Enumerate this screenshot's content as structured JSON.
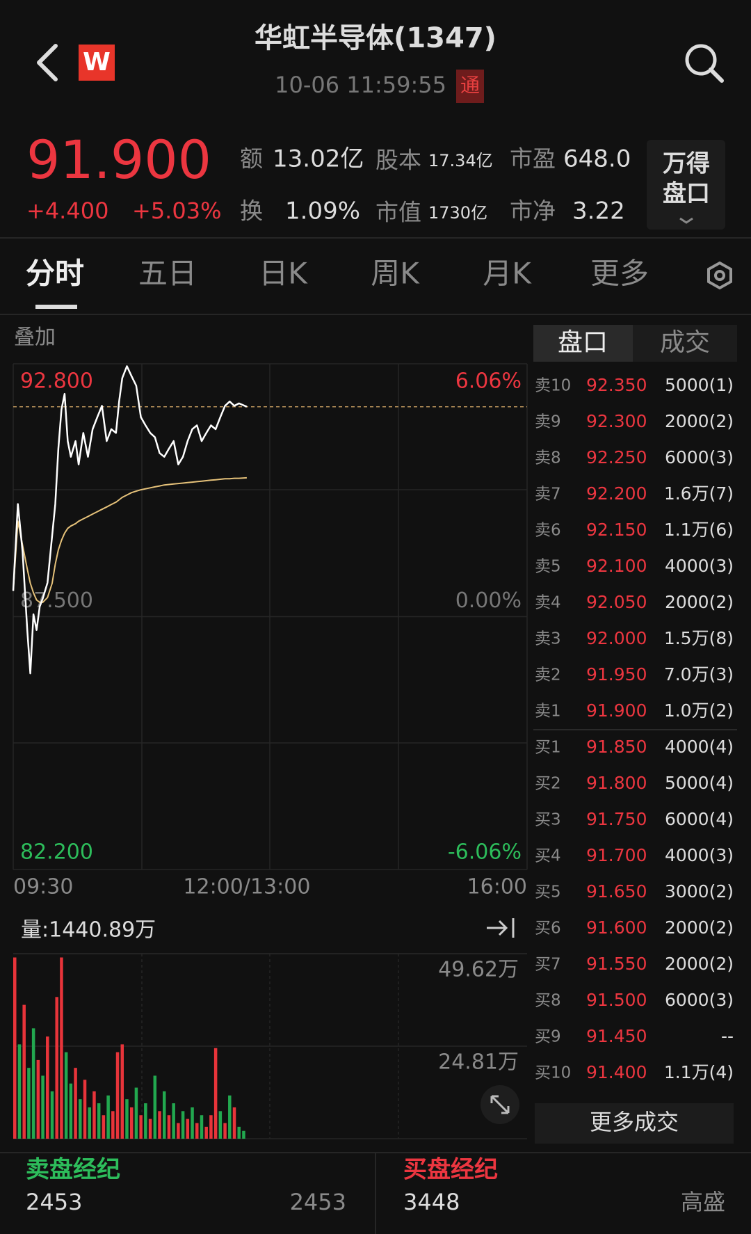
{
  "header": {
    "logo": "W",
    "title": "华虹半导体(1347)",
    "timestamp": "10-06 11:59:55",
    "badge": "通"
  },
  "quote": {
    "price": "91.900",
    "change": "+4.400",
    "change_pct": "+5.03%",
    "stats": [
      [
        "额",
        "13.02亿"
      ],
      [
        "股本",
        "17.34亿"
      ],
      [
        "市盈",
        "648.0"
      ],
      [
        "换",
        "1.09%"
      ],
      [
        "市值",
        "1730亿"
      ],
      [
        "市净",
        "3.22"
      ]
    ],
    "button": [
      "万得",
      "盘口"
    ]
  },
  "tabs": [
    "分时",
    "五日",
    "日K",
    "周K",
    "月K",
    "更多"
  ],
  "overlay_label": "叠加",
  "chart_data": [
    {
      "type": "line",
      "x": [
        0,
        3,
        6,
        9,
        11,
        13,
        15,
        17,
        19,
        22,
        25,
        27,
        29,
        31,
        33,
        35,
        37,
        40,
        42,
        45,
        48,
        51,
        54,
        57,
        60,
        63,
        66,
        68,
        70,
        73,
        76,
        79,
        82,
        85,
        88,
        91,
        94,
        97,
        100,
        103,
        106,
        109,
        112,
        115,
        118,
        121,
        124,
        127,
        130,
        133,
        136,
        139,
        142,
        145,
        150
      ],
      "series": [
        {
          "color": "#ffffff",
          "values": [
            88.04,
            89.86,
            88.87,
            87.22,
            86.31,
            87.55,
            87.22,
            87.71,
            87.88,
            88.21,
            89.2,
            89.86,
            91.02,
            91.84,
            92.17,
            91.18,
            90.85,
            91.18,
            90.69,
            91.35,
            90.85,
            91.43,
            91.68,
            91.92,
            91.18,
            91.43,
            91.35,
            92.01,
            92.5,
            92.75,
            92.54,
            92.34,
            91.68,
            91.51,
            91.35,
            91.26,
            90.93,
            90.85,
            91.02,
            91.18,
            90.69,
            90.85,
            91.18,
            91.43,
            91.51,
            91.18,
            91.35,
            91.51,
            91.43,
            91.68,
            91.92,
            92.01,
            91.92,
            91.97,
            91.9
          ]
        },
        {
          "color": "#e6c27a",
          "values": [
            88.04,
            89.5,
            89.0,
            88.5,
            88.2,
            88.0,
            87.85,
            87.8,
            87.8,
            87.9,
            88.2,
            88.6,
            88.9,
            89.1,
            89.25,
            89.35,
            89.4,
            89.45,
            89.5,
            89.55,
            89.6,
            89.65,
            89.7,
            89.75,
            89.8,
            89.85,
            89.9,
            89.95,
            90.0,
            90.05,
            90.1,
            90.13,
            90.16,
            90.18,
            90.2,
            90.22,
            90.24,
            90.26,
            90.27,
            90.28,
            90.29,
            90.3,
            90.31,
            90.32,
            90.33,
            90.34,
            90.35,
            90.36,
            90.37,
            90.38,
            90.39,
            90.39,
            90.4,
            90.4,
            90.41
          ]
        }
      ],
      "last_price": 91.9,
      "xlim": [
        0,
        330
      ],
      "xticks": [
        {
          "value": 0,
          "label": "09:30"
        },
        {
          "value": 150,
          "label": "12:00/13:00"
        },
        {
          "value": 330,
          "label": "16:00"
        }
      ],
      "ylim": [
        82.2,
        92.8
      ],
      "yticks": [
        {
          "value": 92.8,
          "label": "92.800"
        },
        {
          "value": 87.5,
          "label": "87.500"
        },
        {
          "value": 82.2,
          "label": "82.200"
        }
      ],
      "y2lim": [
        -6.06,
        6.06
      ],
      "y2ticks": [
        {
          "value": 6.06,
          "label": "6.06%"
        },
        {
          "value": 0,
          "label": "0.00%"
        },
        {
          "value": -6.06,
          "label": "-6.06%"
        }
      ],
      "grid": true
    },
    {
      "type": "bar",
      "title": "量:1440.89万",
      "x": [
        0,
        3,
        6,
        9,
        12,
        15,
        18,
        21,
        24,
        27,
        30,
        33,
        36,
        39,
        42,
        45,
        48,
        51,
        54,
        57,
        60,
        63,
        66,
        69,
        72,
        75,
        78,
        81,
        84,
        87,
        90,
        93,
        96,
        99,
        102,
        105,
        108,
        111,
        114,
        117,
        120,
        123,
        126,
        129,
        132,
        135,
        138,
        141,
        144,
        147
      ],
      "values": [
        48.6,
        25.3,
        35.9,
        19,
        29.6,
        21.1,
        16.9,
        27.4,
        12.7,
        38,
        48.6,
        23.2,
        14.8,
        19,
        10.6,
        15.8,
        8.4,
        12.7,
        9.5,
        6.3,
        11.6,
        7.4,
        23.2,
        25.3,
        10.6,
        8.4,
        13.7,
        6.3,
        9.5,
        5.3,
        16.9,
        7.4,
        12.7,
        6.3,
        9.5,
        4.2,
        7.4,
        5.3,
        8.4,
        4.2,
        6.3,
        3.2,
        6.3,
        24.3,
        7.4,
        4.2,
        11.6,
        8.4,
        3.2,
        2.1
      ],
      "colors": [
        "#e8343a",
        "#22a84f",
        "#e8343a",
        "#22a84f",
        "#22a84f",
        "#e8343a",
        "#22a84f",
        "#e8343a",
        "#22a84f",
        "#e8343a",
        "#e8343a",
        "#22a84f",
        "#22a84f",
        "#e8343a",
        "#22a84f",
        "#e8343a",
        "#22a84f",
        "#e8343a",
        "#22a84f",
        "#e8343a",
        "#22a84f",
        "#e8343a",
        "#e8343a",
        "#e8343a",
        "#22a84f",
        "#e8343a",
        "#22a84f",
        "#e8343a",
        "#22a84f",
        "#e8343a",
        "#22a84f",
        "#e8343a",
        "#22a84f",
        "#e8343a",
        "#22a84f",
        "#e8343a",
        "#22a84f",
        "#e8343a",
        "#22a84f",
        "#e8343a",
        "#22a84f",
        "#e8343a",
        "#e8343a",
        "#e8343a",
        "#22a84f",
        "#e8343a",
        "#22a84f",
        "#e8343a",
        "#22a84f",
        "#22a84f"
      ],
      "xlim": [
        0,
        330
      ],
      "ylim": [
        0,
        49.62
      ],
      "yticks": [
        {
          "value": 49.62,
          "label": "49.62万"
        },
        {
          "value": 24.81,
          "label": "24.81万"
        }
      ]
    }
  ],
  "order_book": {
    "tabs": [
      "盘口",
      "成交"
    ],
    "rows": [
      [
        "卖10",
        "92.350",
        "5000(1)"
      ],
      [
        "卖9",
        "92.300",
        "2000(2)"
      ],
      [
        "卖8",
        "92.250",
        "6000(3)"
      ],
      [
        "卖7",
        "92.200",
        "1.6万(7)"
      ],
      [
        "卖6",
        "92.150",
        "1.1万(6)"
      ],
      [
        "卖5",
        "92.100",
        "4000(3)"
      ],
      [
        "卖4",
        "92.050",
        "2000(2)"
      ],
      [
        "卖3",
        "92.000",
        "1.5万(8)"
      ],
      [
        "卖2",
        "91.950",
        "7.0万(3)"
      ],
      [
        "卖1",
        "91.900",
        "1.0万(2)"
      ],
      [
        "买1",
        "91.850",
        "4000(4)"
      ],
      [
        "买2",
        "91.800",
        "5000(4)"
      ],
      [
        "买3",
        "91.750",
        "6000(4)"
      ],
      [
        "买4",
        "91.700",
        "4000(3)"
      ],
      [
        "买5",
        "91.650",
        "3000(2)"
      ],
      [
        "买6",
        "91.600",
        "2000(2)"
      ],
      [
        "买7",
        "91.550",
        "2000(2)"
      ],
      [
        "买8",
        "91.500",
        "6000(3)"
      ],
      [
        "买9",
        "91.450",
        "--"
      ],
      [
        "买10",
        "91.400",
        "1.1万(4)"
      ]
    ],
    "more": "更多成交"
  },
  "brokers": {
    "sell": [
      "卖盘经纪",
      "2453",
      "2453"
    ],
    "buy": [
      "买盘经纪",
      "3448",
      "高盛"
    ]
  }
}
